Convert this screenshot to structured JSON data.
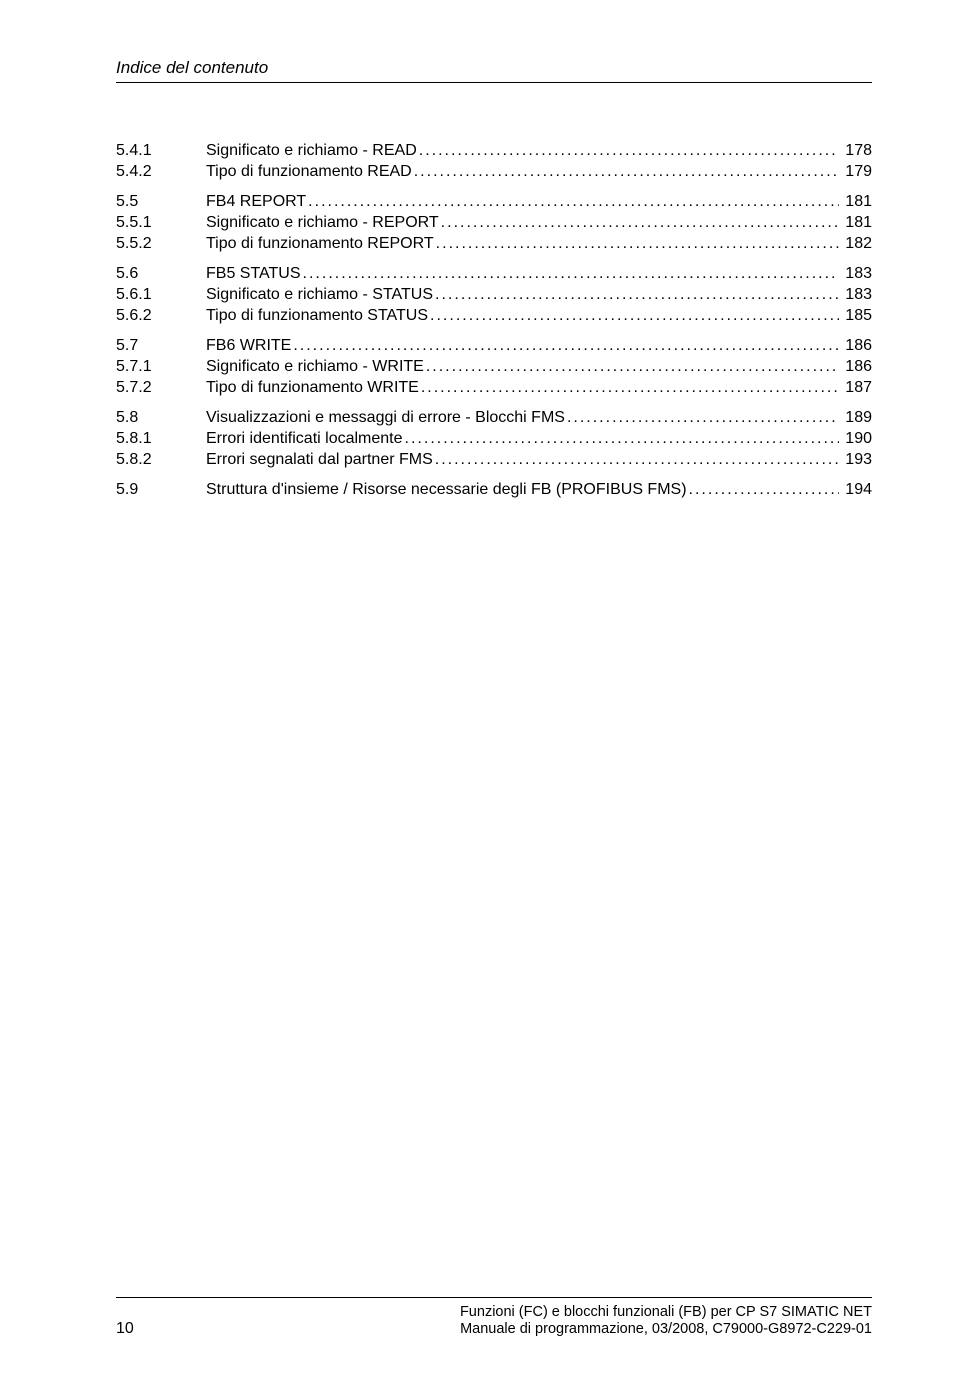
{
  "running_header": "Indice del contenuto",
  "toc": [
    {
      "num": "5.4.1",
      "title": "Significato e richiamo - READ",
      "page": "178",
      "group_start": false
    },
    {
      "num": "5.4.2",
      "title": "Tipo di funzionamento READ",
      "page": "179",
      "group_start": false
    },
    {
      "num": "5.5",
      "title": "FB4 REPORT",
      "page": "181",
      "group_start": true
    },
    {
      "num": "5.5.1",
      "title": "Significato e richiamo - REPORT",
      "page": "181",
      "group_start": false
    },
    {
      "num": "5.5.2",
      "title": "Tipo di funzionamento REPORT",
      "page": "182",
      "group_start": false
    },
    {
      "num": "5.6",
      "title": "FB5 STATUS",
      "page": "183",
      "group_start": true
    },
    {
      "num": "5.6.1",
      "title": "Significato e richiamo - STATUS",
      "page": "183",
      "group_start": false
    },
    {
      "num": "5.6.2",
      "title": "Tipo di funzionamento STATUS",
      "page": "185",
      "group_start": false
    },
    {
      "num": "5.7",
      "title": "FB6 WRITE",
      "page": "186",
      "group_start": true
    },
    {
      "num": "5.7.1",
      "title": "Significato e richiamo - WRITE",
      "page": "186",
      "group_start": false
    },
    {
      "num": "5.7.2",
      "title": "Tipo di funzionamento WRITE",
      "page": "187",
      "group_start": false
    },
    {
      "num": "5.8",
      "title": "Visualizzazioni e messaggi di errore - Blocchi FMS",
      "page": "189",
      "group_start": true
    },
    {
      "num": "5.8.1",
      "title": "Errori identificati localmente",
      "page": "190",
      "group_start": false
    },
    {
      "num": "5.8.2",
      "title": "Errori segnalati dal partner FMS",
      "page": "193",
      "group_start": false
    },
    {
      "num": "5.9",
      "title": "Struttura d'insieme / Risorse necessarie degli FB (PROFIBUS FMS)",
      "page": "194",
      "group_start": true
    }
  ],
  "footer": {
    "page_number": "10",
    "line1_right": "Funzioni (FC) e blocchi funzionali (FB) per CP S7 SIMATIC NET",
    "line2_right": "Manuale di programmazione, 03/2008, C79000-G8972-C229-01"
  }
}
